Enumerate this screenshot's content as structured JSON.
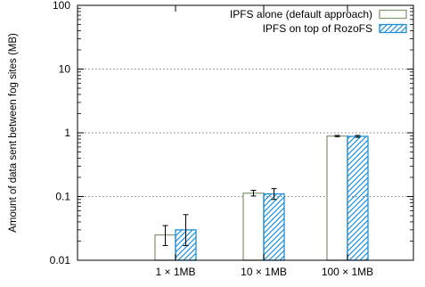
{
  "chart_data": {
    "type": "bar",
    "title": "",
    "xlabel": "",
    "ylabel": "Amount of data sent between fog sites (MB)",
    "yscale": "log",
    "ylim": [
      0.01,
      100
    ],
    "yticks": [
      {
        "value": 0.01,
        "label": "0.01"
      },
      {
        "value": 0.1,
        "label": "0.1"
      },
      {
        "value": 1,
        "label": "1"
      },
      {
        "value": 10,
        "label": "10"
      },
      {
        "value": 100,
        "label": "100"
      }
    ],
    "grid": "horizontal dotted",
    "legend_position": "top-right",
    "categories": [
      "1 × 1MB",
      "10 × 1MB",
      "100 × 1MB"
    ],
    "series": [
      {
        "name": "IPFS alone (default approach)",
        "color": "#8a9a7b",
        "fill": "none",
        "values": [
          0.025,
          0.113,
          0.89
        ],
        "errors": [
          [
            0.017,
            0.035
          ],
          [
            0.102,
            0.125
          ],
          [
            0.87,
            0.91
          ]
        ]
      },
      {
        "name": "IPFS on top of RozoFS",
        "color": "#1e8fd9",
        "fill": "hatch",
        "values": [
          0.03,
          0.11,
          0.88
        ],
        "errors": [
          [
            0.017,
            0.052
          ],
          [
            0.09,
            0.133
          ],
          [
            0.85,
            0.91
          ]
        ]
      }
    ]
  }
}
